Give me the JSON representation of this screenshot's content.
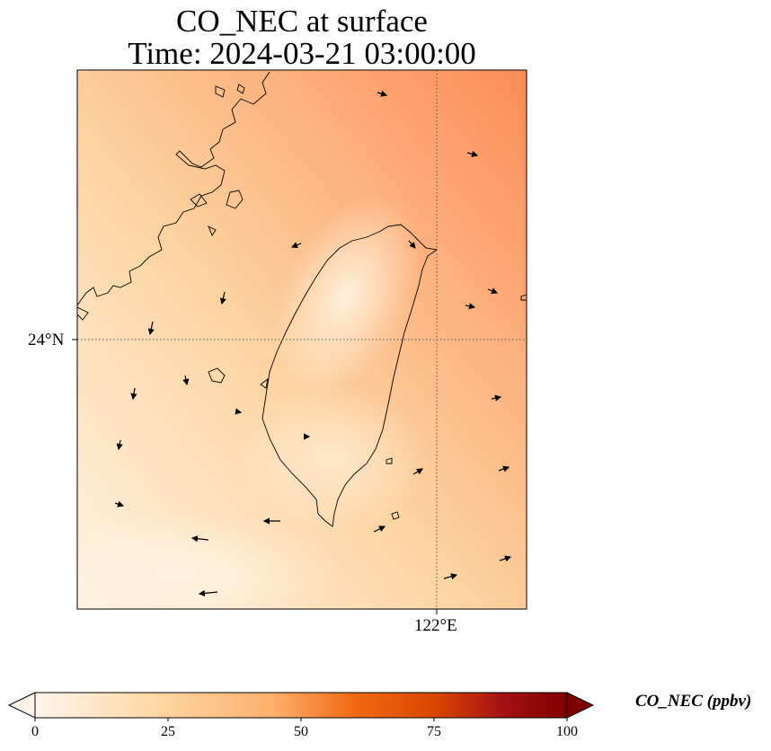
{
  "title": {
    "line1": "CO_NEC at surface",
    "line2": "Time: 2024-03-21 03:00:00"
  },
  "axes": {
    "lat_label": "24°N",
    "lon_label": "122°E"
  },
  "colorbar": {
    "label": "CO_NEC (ppbv)",
    "min": 0,
    "max": 100,
    "ticks": [
      "0",
      "25",
      "50",
      "75",
      "100"
    ],
    "colors": [
      "#fff5eb",
      "#fdd49e",
      "#fdae6b",
      "#f16913",
      "#d94801",
      "#a50f15",
      "#7f0000"
    ]
  },
  "map": {
    "field_colors": {
      "low": "#fff3e3",
      "mid": "#fcd3a1",
      "high": "#fda672",
      "peak": "#fb8c57"
    },
    "coastline_color": "#000000",
    "gridline_color": "#555555"
  }
}
